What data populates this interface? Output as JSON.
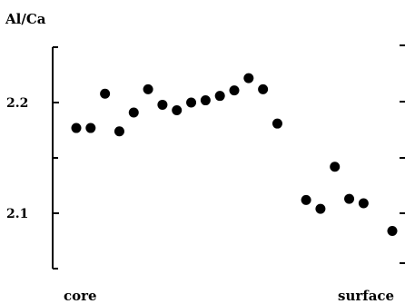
{
  "chart_data": {
    "type": "scatter",
    "ylabel": "Al/Ca",
    "x_tick_labels": [
      "core",
      "surface"
    ],
    "y_ticks": [
      2.1,
      2.2
    ],
    "y_tick_labels": [
      "2.1",
      "2.2"
    ],
    "ylim": [
      2.05,
      2.25
    ],
    "grid": false,
    "marker_color": "#000000",
    "points": [
      {
        "x": 1,
        "y": 2.177
      },
      {
        "x": 2,
        "y": 2.177
      },
      {
        "x": 3,
        "y": 2.208
      },
      {
        "x": 4,
        "y": 2.174
      },
      {
        "x": 5,
        "y": 2.191
      },
      {
        "x": 6,
        "y": 2.212
      },
      {
        "x": 7,
        "y": 2.198
      },
      {
        "x": 8,
        "y": 2.193
      },
      {
        "x": 9,
        "y": 2.2
      },
      {
        "x": 10,
        "y": 2.202
      },
      {
        "x": 11,
        "y": 2.206
      },
      {
        "x": 12,
        "y": 2.211
      },
      {
        "x": 13,
        "y": 2.222
      },
      {
        "x": 14,
        "y": 2.212
      },
      {
        "x": 15,
        "y": 2.181
      },
      {
        "x": 17,
        "y": 2.112
      },
      {
        "x": 18,
        "y": 2.104
      },
      {
        "x": 19,
        "y": 2.142
      },
      {
        "x": 20,
        "y": 2.113
      },
      {
        "x": 21,
        "y": 2.109
      },
      {
        "x": 23,
        "y": 2.084
      }
    ]
  }
}
